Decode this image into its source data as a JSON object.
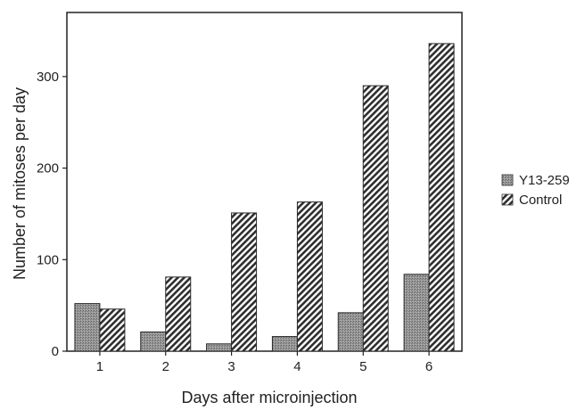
{
  "chart_data": {
    "type": "bar",
    "categories": [
      "1",
      "2",
      "3",
      "4",
      "5",
      "6"
    ],
    "series": [
      {
        "name": "Y13-259",
        "values": [
          52,
          21,
          8,
          16,
          42,
          84
        ],
        "color": "#8c8c8c",
        "pattern": "stipple"
      },
      {
        "name": "Control",
        "values": [
          46,
          81,
          151,
          163,
          290,
          336
        ],
        "color": "#3a3a3a",
        "pattern": "diagonal-hatch"
      }
    ],
    "xlabel": "Days after microinjection",
    "ylabel": "Number of mitoses per day",
    "ylim": [
      0,
      370
    ],
    "yticks": [
      0,
      100,
      200,
      300
    ],
    "grid": false,
    "legend_position": "right"
  }
}
